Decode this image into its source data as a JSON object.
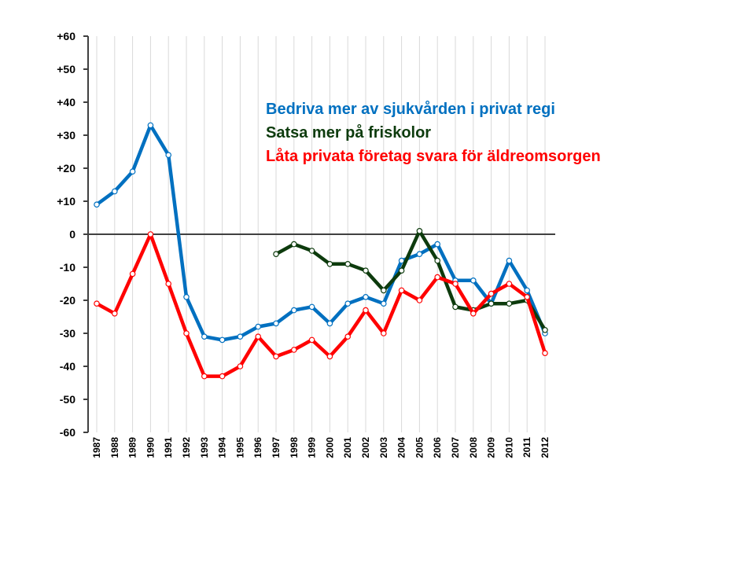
{
  "chart_data": {
    "type": "line",
    "title": "",
    "xlabel": "",
    "ylabel": "",
    "ylim": [
      -60,
      60
    ],
    "yticks": [
      {
        "value": 60,
        "label": "+60"
      },
      {
        "value": 50,
        "label": "+50"
      },
      {
        "value": 40,
        "label": "+40"
      },
      {
        "value": 30,
        "label": "+30"
      },
      {
        "value": 20,
        "label": "+20"
      },
      {
        "value": 10,
        "label": "+10"
      },
      {
        "value": 0,
        "label": "0"
      },
      {
        "value": -10,
        "label": "-10"
      },
      {
        "value": -20,
        "label": "-20"
      },
      {
        "value": -30,
        "label": "-30"
      },
      {
        "value": -40,
        "label": "-40"
      },
      {
        "value": -50,
        "label": "-50"
      },
      {
        "value": -60,
        "label": "-60"
      }
    ],
    "categories": [
      "1987",
      "1988",
      "1989",
      "1990",
      "1991",
      "1992",
      "1993",
      "1994",
      "1995",
      "1996",
      "1997",
      "1998",
      "1999",
      "2000",
      "2001",
      "2002",
      "2003",
      "2004",
      "2005",
      "2006",
      "2007",
      "2008",
      "2009",
      "2010",
      "2011",
      "2012"
    ],
    "series": [
      {
        "name": "Bedriva mer av sjukvården i privat regi",
        "color": "#0070c0",
        "values": [
          9,
          13,
          19,
          33,
          24,
          -19,
          -31,
          -32,
          -31,
          -28,
          -27,
          -23,
          -22,
          -27,
          -21,
          -19,
          -21,
          -8,
          -6,
          -3,
          -14,
          -14,
          -21,
          -8,
          -17,
          -30
        ]
      },
      {
        "name": "Satsa mer på friskolor",
        "color": "#0d3b0d",
        "values": [
          null,
          null,
          null,
          null,
          null,
          null,
          null,
          null,
          null,
          null,
          -6,
          -3,
          -5,
          -9,
          -9,
          -11,
          -17,
          -11,
          1,
          -8,
          -22,
          -23,
          -21,
          -21,
          -20,
          -29
        ]
      },
      {
        "name": "Låta privata företag svara för äldreomsorgen",
        "color": "#ff0000",
        "values": [
          -21,
          -24,
          -12,
          0,
          -15,
          -30,
          -43,
          -43,
          -40,
          -31,
          -37,
          -35,
          -32,
          -37,
          -31,
          -23,
          -30,
          -17,
          -20,
          -13,
          -15,
          -24,
          -18,
          -15,
          -19,
          -36
        ]
      }
    ]
  }
}
